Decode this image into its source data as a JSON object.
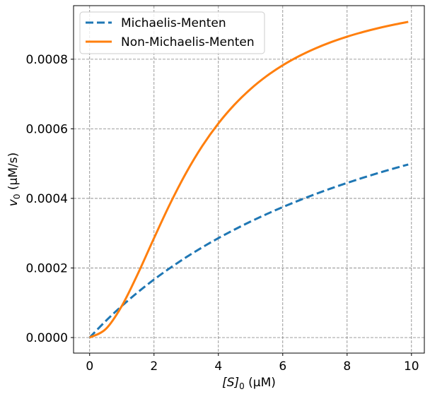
{
  "chart_data": {
    "type": "line",
    "title": "",
    "xlabel": {
      "main": "[S]",
      "sub": "0",
      "unit": " (μM)"
    },
    "ylabel": {
      "main": "v",
      "sub": "0",
      "unit": " (μM/s)"
    },
    "xlim": [
      -0.5,
      10.4
    ],
    "ylim": [
      -4.47e-05,
      0.000954
    ],
    "xticks": [
      0,
      2,
      4,
      6,
      8,
      10
    ],
    "xtick_labels": [
      "0",
      "2",
      "4",
      "6",
      "8",
      "10"
    ],
    "yticks": [
      0,
      0.0002,
      0.0004,
      0.0006,
      0.0008
    ],
    "ytick_labels": [
      "0.0000",
      "0.0002",
      "0.0004",
      "0.0006",
      "0.0008"
    ],
    "grid": true,
    "legend_position": "top-left",
    "x": [
      0,
      0.5,
      1,
      1.5,
      2,
      2.5,
      3,
      3.5,
      4,
      4.5,
      5,
      5.5,
      6,
      6.5,
      7,
      7.5,
      8,
      8.5,
      9,
      9.5,
      9.9
    ],
    "series": [
      {
        "name": "Michaelis-Menten",
        "color": "#1f77b4",
        "style": "dashed",
        "values": [
          0,
          4.76e-05,
          9.09e-05,
          0.0001304,
          0.0001667,
          0.0002,
          0.0002308,
          0.0002593,
          0.0002857,
          0.0003103,
          0.0003333,
          0.0003548,
          0.000375,
          0.0003939,
          0.0004118,
          0.0004286,
          0.0004444,
          0.0004595,
          0.0004737,
          0.0004872,
          0.0004975
        ]
      },
      {
        "name": "Non-Michaelis-Menten",
        "color": "#ff7f0e",
        "style": "solid",
        "values": [
          0,
          2.44e-05,
          9.09e-05,
          0.0001837,
          0.0002857,
          0.0003846,
          0.0004737,
          0.0005506,
          0.0006154,
          0.0006694,
          0.0007143,
          0.0007516,
          0.0007826,
          0.0008086,
          0.0008305,
          0.0008491,
          0.0008649,
          0.0008784,
          0.0008901,
          0.0009002,
          0.0009074
        ]
      }
    ]
  }
}
